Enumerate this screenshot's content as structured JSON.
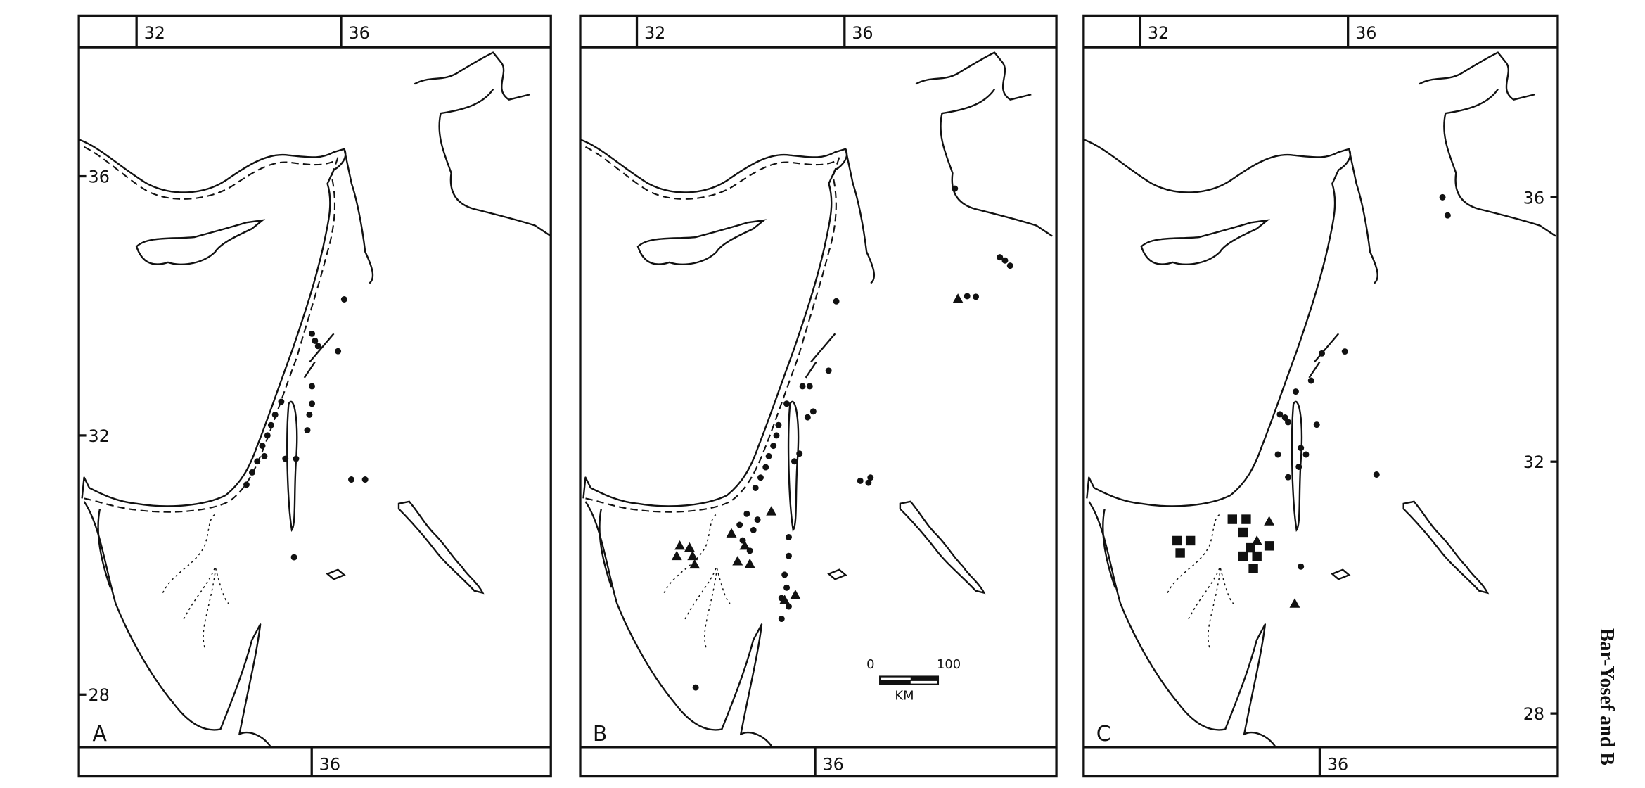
{
  "panels": [
    {
      "letter": "A",
      "top_lon_labels": [
        "32",
        "36"
      ],
      "bottom_lon_label": "36",
      "lat_labels": [
        "36",
        "32",
        "28"
      ],
      "lat_side": "left",
      "paleo_coast": true,
      "sites": [
        {
          "lon": 36.06,
          "lat": 34.1,
          "symbol": "dot"
        },
        {
          "lon": 35.43,
          "lat": 33.57,
          "symbol": "dot"
        },
        {
          "lon": 35.49,
          "lat": 33.46,
          "symbol": "dot"
        },
        {
          "lon": 35.55,
          "lat": 33.38,
          "symbol": "dot"
        },
        {
          "lon": 35.94,
          "lat": 33.3,
          "symbol": "dot"
        },
        {
          "lon": 35.43,
          "lat": 32.76,
          "symbol": "dot"
        },
        {
          "lon": 34.83,
          "lat": 32.52,
          "symbol": "dot"
        },
        {
          "lon": 35.43,
          "lat": 32.49,
          "symbol": "dot"
        },
        {
          "lon": 34.71,
          "lat": 32.32,
          "symbol": "dot"
        },
        {
          "lon": 35.38,
          "lat": 32.32,
          "symbol": "dot"
        },
        {
          "lon": 34.63,
          "lat": 32.16,
          "symbol": "dot"
        },
        {
          "lon": 35.34,
          "lat": 32.08,
          "symbol": "dot"
        },
        {
          "lon": 34.56,
          "lat": 32.0,
          "symbol": "dot"
        },
        {
          "lon": 34.46,
          "lat": 31.84,
          "symbol": "dot"
        },
        {
          "lon": 34.5,
          "lat": 31.68,
          "symbol": "dot"
        },
        {
          "lon": 34.36,
          "lat": 31.6,
          "symbol": "dot"
        },
        {
          "lon": 35.12,
          "lat": 31.64,
          "symbol": "dot"
        },
        {
          "lon": 34.91,
          "lat": 31.64,
          "symbol": "dot"
        },
        {
          "lon": 34.26,
          "lat": 31.43,
          "symbol": "dot"
        },
        {
          "lon": 34.15,
          "lat": 31.24,
          "symbol": "dot"
        },
        {
          "lon": 36.2,
          "lat": 31.32,
          "symbol": "dot"
        },
        {
          "lon": 36.47,
          "lat": 31.32,
          "symbol": "dot"
        },
        {
          "lon": 35.08,
          "lat": 30.12,
          "symbol": "dot"
        }
      ]
    },
    {
      "letter": "B",
      "top_lon_labels": [
        "32",
        "36"
      ],
      "bottom_lon_label": "36",
      "lat_labels": [],
      "lat_side": "none",
      "paleo_coast": true,
      "scale_bar": {
        "min_label": "0",
        "max_label": "100",
        "unit": "KM"
      },
      "sites": [
        {
          "lon": 38.22,
          "lat": 35.81,
          "symbol": "dot"
        },
        {
          "lon": 39.1,
          "lat": 34.75,
          "symbol": "dot"
        },
        {
          "lon": 39.2,
          "lat": 34.7,
          "symbol": "dot"
        },
        {
          "lon": 39.3,
          "lat": 34.62,
          "symbol": "dot"
        },
        {
          "lon": 38.46,
          "lat": 34.15,
          "symbol": "dot"
        },
        {
          "lon": 38.63,
          "lat": 34.14,
          "symbol": "dot"
        },
        {
          "lon": 35.9,
          "lat": 34.07,
          "symbol": "dot"
        },
        {
          "lon": 35.75,
          "lat": 33.0,
          "symbol": "dot"
        },
        {
          "lon": 35.38,
          "lat": 32.76,
          "symbol": "dot"
        },
        {
          "lon": 35.24,
          "lat": 32.76,
          "symbol": "dot"
        },
        {
          "lon": 34.93,
          "lat": 32.49,
          "symbol": "dot"
        },
        {
          "lon": 35.45,
          "lat": 32.37,
          "symbol": "dot"
        },
        {
          "lon": 35.34,
          "lat": 32.28,
          "symbol": "dot"
        },
        {
          "lon": 34.77,
          "lat": 32.16,
          "symbol": "dot"
        },
        {
          "lon": 34.73,
          "lat": 32.0,
          "symbol": "dot"
        },
        {
          "lon": 34.67,
          "lat": 31.84,
          "symbol": "dot"
        },
        {
          "lon": 34.58,
          "lat": 31.68,
          "symbol": "dot"
        },
        {
          "lon": 34.52,
          "lat": 31.51,
          "symbol": "dot"
        },
        {
          "lon": 34.42,
          "lat": 31.35,
          "symbol": "dot"
        },
        {
          "lon": 34.32,
          "lat": 31.19,
          "symbol": "dot"
        },
        {
          "lon": 35.18,
          "lat": 31.72,
          "symbol": "dot"
        },
        {
          "lon": 35.08,
          "lat": 31.6,
          "symbol": "dot"
        },
        {
          "lon": 36.37,
          "lat": 31.3,
          "symbol": "dot"
        },
        {
          "lon": 36.53,
          "lat": 31.27,
          "symbol": "dot"
        },
        {
          "lon": 36.57,
          "lat": 31.35,
          "symbol": "dot"
        },
        {
          "lon": 34.15,
          "lat": 30.79,
          "symbol": "dot"
        },
        {
          "lon": 34.01,
          "lat": 30.62,
          "symbol": "dot"
        },
        {
          "lon": 34.28,
          "lat": 30.54,
          "symbol": "dot"
        },
        {
          "lon": 34.36,
          "lat": 30.7,
          "symbol": "dot"
        },
        {
          "lon": 34.07,
          "lat": 30.38,
          "symbol": "dot"
        },
        {
          "lon": 34.21,
          "lat": 30.22,
          "symbol": "dot"
        },
        {
          "lon": 34.97,
          "lat": 30.43,
          "symbol": "dot"
        },
        {
          "lon": 34.97,
          "lat": 30.14,
          "symbol": "dot"
        },
        {
          "lon": 34.89,
          "lat": 29.85,
          "symbol": "dot"
        },
        {
          "lon": 34.93,
          "lat": 29.65,
          "symbol": "dot"
        },
        {
          "lon": 34.83,
          "lat": 29.49,
          "symbol": "dot"
        },
        {
          "lon": 34.97,
          "lat": 29.36,
          "symbol": "dot"
        },
        {
          "lon": 34.83,
          "lat": 29.17,
          "symbol": "dot"
        },
        {
          "lon": 33.15,
          "lat": 28.11,
          "symbol": "dot"
        },
        {
          "lon": 38.28,
          "lat": 34.11,
          "symbol": "triangle"
        },
        {
          "lon": 32.84,
          "lat": 30.3,
          "symbol": "triangle"
        },
        {
          "lon": 33.03,
          "lat": 30.27,
          "symbol": "triangle"
        },
        {
          "lon": 32.78,
          "lat": 30.14,
          "symbol": "triangle"
        },
        {
          "lon": 33.09,
          "lat": 30.14,
          "symbol": "triangle"
        },
        {
          "lon": 33.13,
          "lat": 30.01,
          "symbol": "triangle"
        },
        {
          "lon": 33.85,
          "lat": 30.49,
          "symbol": "triangle"
        },
        {
          "lon": 34.63,
          "lat": 30.83,
          "symbol": "triangle"
        },
        {
          "lon": 33.97,
          "lat": 30.06,
          "symbol": "triangle"
        },
        {
          "lon": 34.21,
          "lat": 30.02,
          "symbol": "triangle"
        },
        {
          "lon": 34.11,
          "lat": 30.3,
          "symbol": "triangle"
        },
        {
          "lon": 35.1,
          "lat": 29.54,
          "symbol": "triangle"
        },
        {
          "lon": 34.89,
          "lat": 29.46,
          "symbol": "triangle"
        }
      ]
    },
    {
      "letter": "C",
      "top_lon_labels": [
        "32",
        "36"
      ],
      "bottom_lon_label": "36",
      "lat_labels": [
        "36",
        "32",
        "28"
      ],
      "lat_side": "right",
      "paleo_coast": false,
      "sites": [
        {
          "lon": 37.89,
          "lat": 36.0,
          "symbol": "dot"
        },
        {
          "lon": 37.99,
          "lat": 35.72,
          "symbol": "dot"
        },
        {
          "lon": 35.98,
          "lat": 33.62,
          "symbol": "dot"
        },
        {
          "lon": 35.53,
          "lat": 33.59,
          "symbol": "dot"
        },
        {
          "lon": 35.32,
          "lat": 33.17,
          "symbol": "dot"
        },
        {
          "lon": 35.02,
          "lat": 33.0,
          "symbol": "dot"
        },
        {
          "lon": 34.71,
          "lat": 32.65,
          "symbol": "dot"
        },
        {
          "lon": 34.81,
          "lat": 32.6,
          "symbol": "dot"
        },
        {
          "lon": 34.87,
          "lat": 32.53,
          "symbol": "dot"
        },
        {
          "lon": 35.43,
          "lat": 32.49,
          "symbol": "dot"
        },
        {
          "lon": 35.12,
          "lat": 32.13,
          "symbol": "dot"
        },
        {
          "lon": 35.22,
          "lat": 32.03,
          "symbol": "dot"
        },
        {
          "lon": 35.08,
          "lat": 31.84,
          "symbol": "dot"
        },
        {
          "lon": 34.87,
          "lat": 31.68,
          "symbol": "dot"
        },
        {
          "lon": 34.67,
          "lat": 32.03,
          "symbol": "dot"
        },
        {
          "lon": 36.6,
          "lat": 31.72,
          "symbol": "dot"
        },
        {
          "lon": 35.12,
          "lat": 30.3,
          "symbol": "dot"
        },
        {
          "lon": 32.7,
          "lat": 30.7,
          "symbol": "square"
        },
        {
          "lon": 32.96,
          "lat": 30.7,
          "symbol": "square"
        },
        {
          "lon": 32.76,
          "lat": 30.51,
          "symbol": "square"
        },
        {
          "lon": 33.78,
          "lat": 31.03,
          "symbol": "square"
        },
        {
          "lon": 34.05,
          "lat": 31.03,
          "symbol": "square"
        },
        {
          "lon": 33.99,
          "lat": 30.83,
          "symbol": "square"
        },
        {
          "lon": 34.13,
          "lat": 30.59,
          "symbol": "square"
        },
        {
          "lon": 34.5,
          "lat": 30.62,
          "symbol": "square"
        },
        {
          "lon": 33.99,
          "lat": 30.46,
          "symbol": "square"
        },
        {
          "lon": 34.26,
          "lat": 30.46,
          "symbol": "square"
        },
        {
          "lon": 34.19,
          "lat": 30.27,
          "symbol": "square"
        },
        {
          "lon": 34.5,
          "lat": 31.0,
          "symbol": "triangle"
        },
        {
          "lon": 34.26,
          "lat": 30.7,
          "symbol": "triangle"
        },
        {
          "lon": 35.0,
          "lat": 29.73,
          "symbol": "triangle"
        }
      ]
    }
  ],
  "credit": "Bar-Yosef and B"
}
